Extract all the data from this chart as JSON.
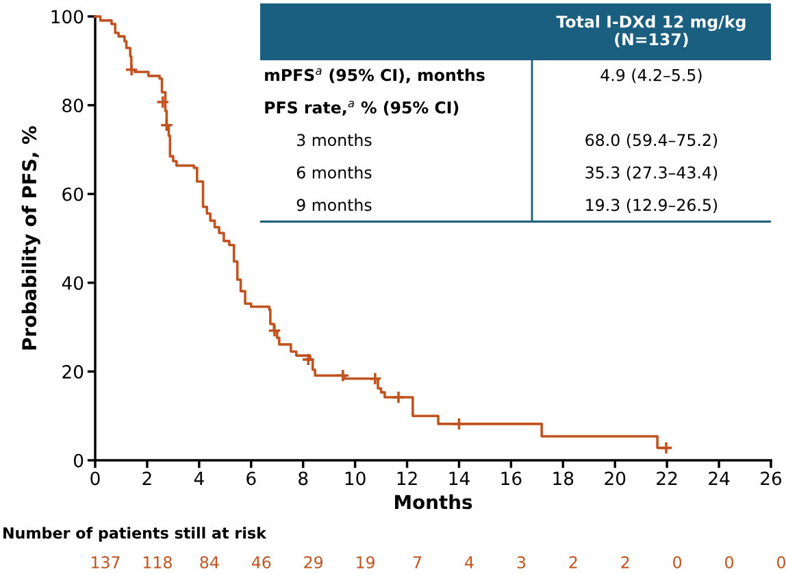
{
  "chart_data": [
    {
      "type": "step",
      "xlabel": "Months",
      "ylabel": "Probability of PFS, %",
      "xlim": [
        0,
        26
      ],
      "xticks": [
        0,
        2,
        4,
        6,
        8,
        10,
        12,
        14,
        16,
        18,
        20,
        22,
        24,
        26
      ],
      "ylim": [
        0,
        100
      ],
      "yticks": [
        0,
        20,
        40,
        60,
        80,
        100
      ],
      "grid": false,
      "series": [
        {
          "type": "step",
          "color": "#c0531f",
          "marker": "none",
          "line_style": "solid",
          "x": [
            0,
            0.2,
            0.63,
            0.77,
            0.9,
            1.13,
            1.2,
            1.35,
            1.39,
            1.52,
            2.05,
            2.48,
            2.57,
            2.7,
            2.75,
            2.83,
            2.88,
            3.0,
            3.13,
            3.8,
            3.92,
            4.15,
            4.3,
            4.43,
            4.6,
            4.77,
            4.95,
            5.16,
            5.34,
            5.47,
            5.6,
            5.77,
            6.0,
            6.7,
            6.74,
            6.88,
            7.0,
            7.08,
            7.53,
            7.74,
            8.27,
            8.37,
            8.46,
            9.59,
            10.88,
            11.0,
            11.14,
            12.22,
            13.2,
            17.18,
            21.63,
            22.0
          ],
          "values": [
            100,
            99.1,
            98.3,
            96.3,
            95.5,
            94.4,
            92.9,
            91,
            88,
            87.5,
            86.6,
            86,
            82.9,
            78.7,
            75.5,
            73.1,
            68.5,
            67.4,
            66.4,
            65.9,
            62.8,
            57.1,
            55.6,
            54,
            52.5,
            51.2,
            49.4,
            48.5,
            44.8,
            40.7,
            38.1,
            35.3,
            34.6,
            33.9,
            30.7,
            29.2,
            27.6,
            26.1,
            24.5,
            23.6,
            22.7,
            20.4,
            19.1,
            18.4,
            16.2,
            15.3,
            14.2,
            10,
            8.2,
            5.4,
            2.8,
            2.8
          ]
        },
        {
          "type": "scatter",
          "color": "#c0531f",
          "marker": "cross",
          "x": [
            1.4,
            2.6,
            2.75,
            6.9,
            8.2,
            9.53,
            10.77,
            11.67,
            14.0,
            21.97
          ],
          "values": [
            88,
            80.7,
            75.5,
            29.2,
            22.7,
            19.1,
            18.4,
            14.2,
            8.2,
            2.8
          ]
        }
      ]
    },
    {
      "type": "other",
      "title": "Total I-DXd 12 mg/kg\n(N=137)",
      "color": "#1a5e80",
      "categories": [
        "mPFS$^{a}$ (95% CI), months",
        "PFS rate,$^{a}$ % (95% CI)",
        "3 months",
        "6 months",
        "9 months"
      ],
      "value_labels": [
        "4.9 (4.2–5.5)",
        null,
        "68.0 (59.4–75.2)",
        "35.3 (27.3–43.4)",
        "19.3 (12.9–26.5)"
      ]
    },
    {
      "type": "other",
      "title": "Number of patients still at risk",
      "color": "#c0531f",
      "data_labels": true,
      "categories": [
        null,
        null,
        null,
        null,
        null,
        null,
        null,
        null,
        null,
        null,
        null,
        null,
        null,
        null
      ],
      "values": [
        137,
        118,
        84,
        46,
        29,
        19,
        7,
        4,
        3,
        2,
        2,
        0,
        0,
        0
      ]
    }
  ]
}
